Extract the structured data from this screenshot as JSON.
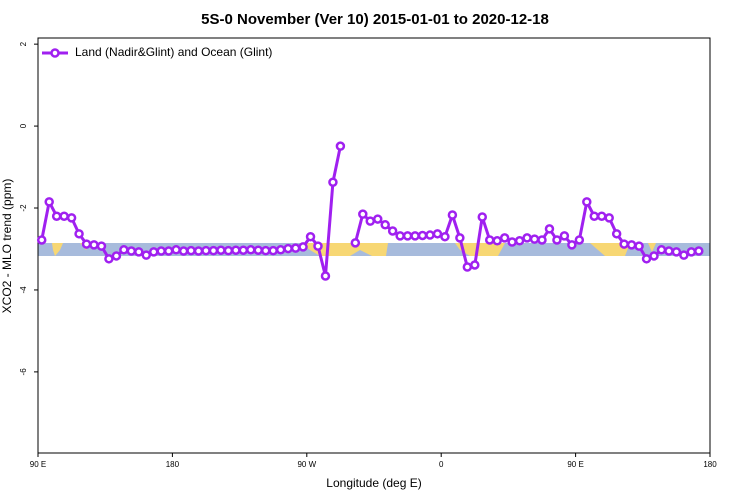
{
  "chart_data": {
    "type": "line",
    "title": "5S-0 November (Ver 10)   2015-01-01 to 2020-12-18",
    "xlabel": "Longitude (deg E)",
    "ylabel": "XCO2 - MLO trend (ppm)",
    "x": [
      92.5,
      97.5,
      102.5,
      107.5,
      112.5,
      117.5,
      122.5,
      127.5,
      132.5,
      137.5,
      142.5,
      147.5,
      152.5,
      157.5,
      162.5,
      167.5,
      172.5,
      177.5,
      182.5,
      187.5,
      192.5,
      197.5,
      202.5,
      207.5,
      212.5,
      217.5,
      222.5,
      227.5,
      232.5,
      237.5,
      242.5,
      247.5,
      252.5,
      257.5,
      262.5,
      267.5,
      272.5,
      277.5,
      282.5,
      287.5,
      292.5,
      297.5,
      302.5,
      307.5,
      312.5,
      317.5,
      322.5,
      327.5,
      332.5,
      337.5,
      342.5,
      347.5,
      352.5,
      357.5,
      362.5,
      367.5,
      372.5,
      377.5,
      382.5,
      387.5,
      392.5,
      397.5,
      402.5,
      407.5,
      412.5,
      417.5,
      422.5,
      427.5,
      432.5,
      437.5,
      442.5,
      447.5,
      452.5,
      457.5,
      462.5,
      467.5,
      472.5,
      477.5,
      482.5,
      487.5,
      492.5,
      497.5,
      502.5,
      507.5,
      512.5,
      517.5,
      522.5,
      527.5,
      532.5
    ],
    "series": [
      {
        "name": "Land (Nadir&Glint) and Ocean (Glint)",
        "color": "#a020f0",
        "values": [
          -2.78,
          -1.85,
          -2.2,
          -2.2,
          -2.24,
          -2.63,
          -2.88,
          -2.9,
          -2.93,
          -3.24,
          -3.17,
          -3.02,
          -3.05,
          -3.07,
          -3.15,
          -3.07,
          -3.05,
          -3.05,
          -3.02,
          -3.05,
          -3.04,
          -3.05,
          -3.04,
          -3.04,
          -3.03,
          -3.04,
          -3.03,
          -3.03,
          -3.02,
          -3.03,
          -3.04,
          -3.04,
          -3.02,
          -2.99,
          -2.98,
          -2.95,
          -2.7,
          -2.93,
          -3.66,
          -1.37,
          -0.49,
          null,
          -2.85,
          -2.15,
          -2.32,
          -2.27,
          -2.41,
          -2.56,
          -2.68,
          -2.68,
          -2.68,
          -2.67,
          -2.66,
          -2.63,
          -2.7,
          -2.17,
          -2.73,
          -3.44,
          -3.39,
          -2.22,
          -2.78,
          -2.8,
          -2.73,
          -2.83,
          -2.8,
          -2.73,
          -2.76,
          -2.78,
          -2.51,
          -2.78,
          -2.68,
          -2.9,
          -2.78,
          -1.85,
          -2.2,
          -2.2,
          -2.24,
          -2.63,
          -2.88,
          -2.9,
          -2.93,
          -3.24,
          -3.17,
          -3.02,
          -3.05,
          -3.07,
          -3.15,
          -3.07,
          -3.05
        ]
      }
    ],
    "xlim": [
      90,
      540
    ],
    "xticks": [
      {
        "value": 90,
        "label": "90 E"
      },
      180,
      {
        "value": 270,
        "label": "90 W"
      },
      {
        "value": 360,
        "label": "0"
      },
      {
        "value": 450,
        "label": "90 E"
      },
      {
        "value": 540,
        "label": "180"
      }
    ],
    "ylim": [
      -7.98,
      2.15
    ],
    "yticks": [
      2,
      0,
      -2,
      -4,
      -6
    ],
    "legend": "top-left"
  }
}
